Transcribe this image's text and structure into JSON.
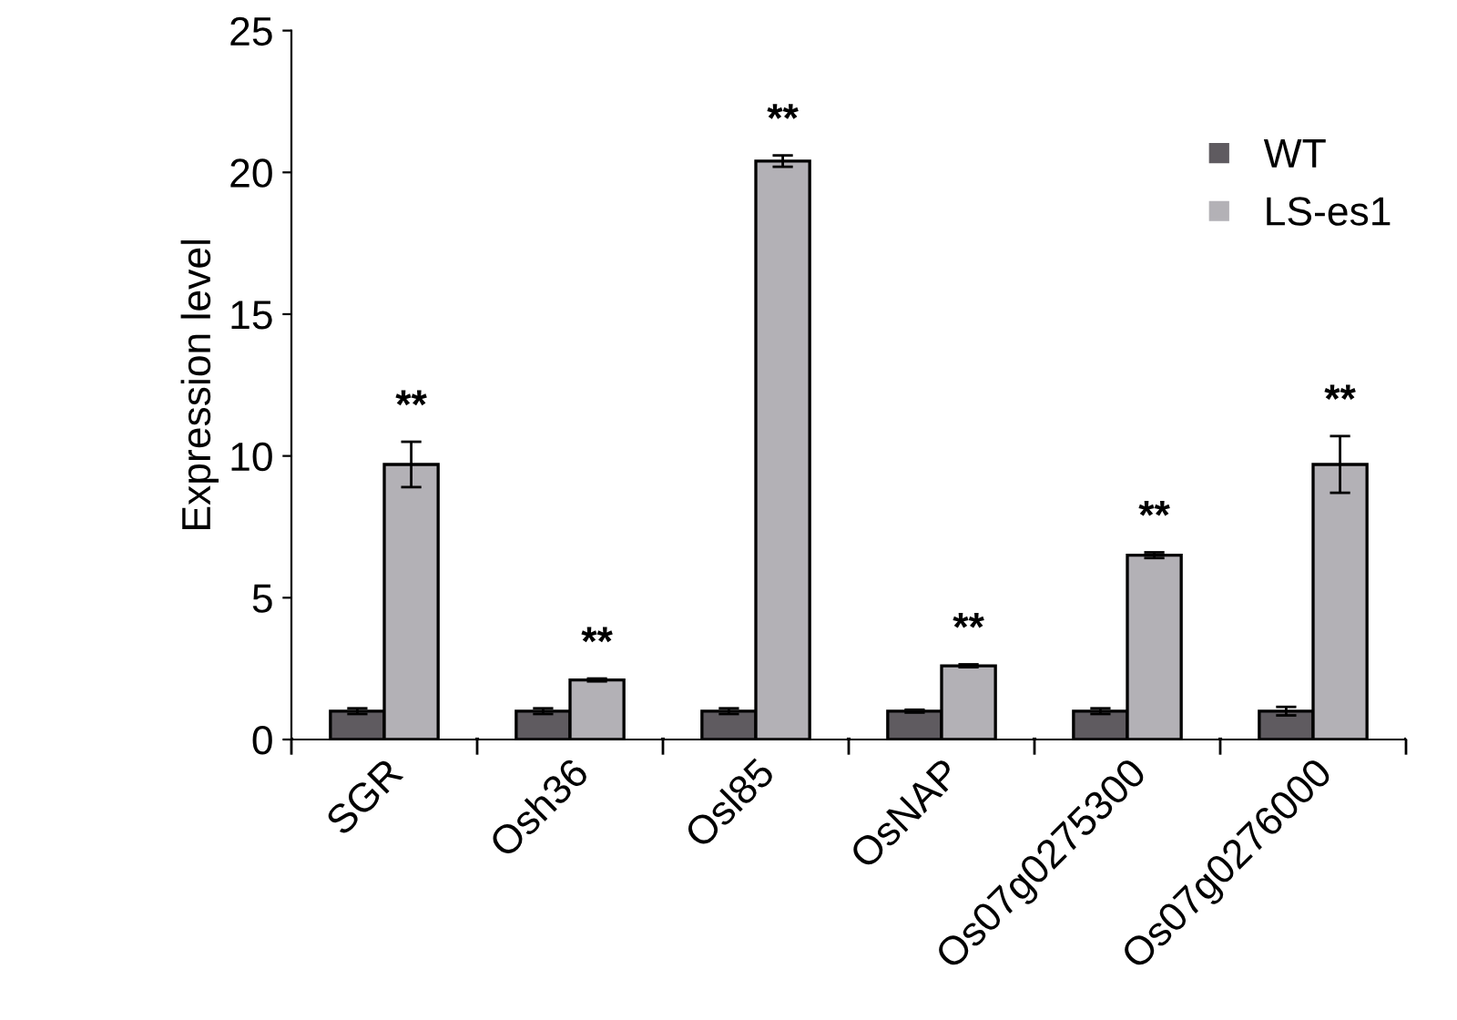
{
  "chart_data": {
    "type": "bar",
    "ylabel": "Expression level",
    "categories": [
      "SGR",
      "Osh36",
      "Osl85",
      "OsNAP",
      "Os07g0275300",
      "Os07g0276000"
    ],
    "series": [
      {
        "name": "WT",
        "color": "#5f5b60",
        "values": [
          1.0,
          1.0,
          1.0,
          1.0,
          1.0,
          1.0
        ],
        "errors": [
          0.1,
          0.1,
          0.1,
          0.05,
          0.1,
          0.15
        ]
      },
      {
        "name": "LS-es1",
        "color": "#b3b1b6",
        "values": [
          9.7,
          2.1,
          20.4,
          2.6,
          6.5,
          9.7
        ],
        "errors": [
          0.8,
          0.05,
          0.2,
          0.05,
          0.1,
          1.0
        ]
      }
    ],
    "annotations": [
      "**",
      "**",
      "**",
      "**",
      "**",
      "**"
    ],
    "ylim": [
      0,
      25
    ],
    "yticks": [
      0,
      5,
      10,
      15,
      20,
      25
    ],
    "grid": false,
    "legend": "top right",
    "marker": "square"
  }
}
